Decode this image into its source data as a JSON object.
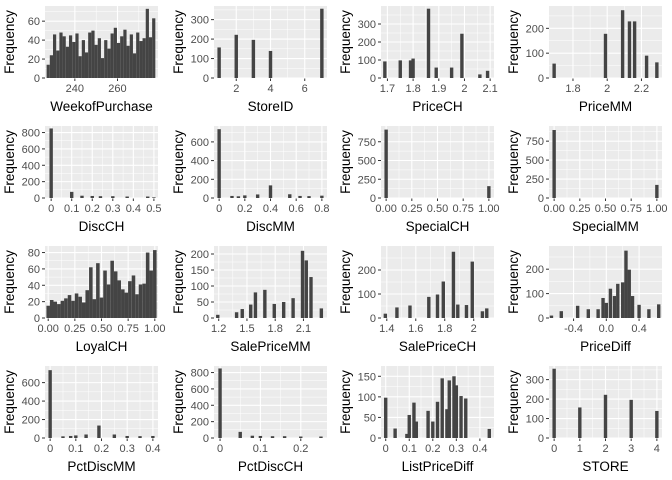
{
  "chart_data": [
    {
      "type": "bar",
      "xlabel": "WeekofPurchase",
      "ylabel": "Frequency",
      "xlim": [
        226,
        279
      ],
      "ylim": [
        0,
        76
      ],
      "xticks": [
        240,
        260,
        280
      ],
      "yticks": [
        0,
        20,
        40,
        60
      ],
      "bars": [
        {
          "x": 227.5,
          "y": 14
        },
        {
          "x": 229,
          "y": 24
        },
        {
          "x": 230.5,
          "y": 46
        },
        {
          "x": 232,
          "y": 29
        },
        {
          "x": 233.5,
          "y": 48
        },
        {
          "x": 235,
          "y": 44
        },
        {
          "x": 236.5,
          "y": 33
        },
        {
          "x": 238,
          "y": 45
        },
        {
          "x": 239.5,
          "y": 38
        },
        {
          "x": 241,
          "y": 47
        },
        {
          "x": 242.5,
          "y": 23
        },
        {
          "x": 244,
          "y": 40
        },
        {
          "x": 245.5,
          "y": 27
        },
        {
          "x": 247,
          "y": 48
        },
        {
          "x": 248.5,
          "y": 50
        },
        {
          "x": 250,
          "y": 35
        },
        {
          "x": 251.5,
          "y": 42
        },
        {
          "x": 253,
          "y": 21
        },
        {
          "x": 254.5,
          "y": 40
        },
        {
          "x": 256,
          "y": 31
        },
        {
          "x": 257.5,
          "y": 47
        },
        {
          "x": 259,
          "y": 53
        },
        {
          "x": 260.5,
          "y": 37
        },
        {
          "x": 262,
          "y": 44
        },
        {
          "x": 263.5,
          "y": 51
        },
        {
          "x": 265,
          "y": 34
        },
        {
          "x": 266.5,
          "y": 46
        },
        {
          "x": 268,
          "y": 26
        },
        {
          "x": 269.5,
          "y": 48
        },
        {
          "x": 271,
          "y": 39
        },
        {
          "x": 272.5,
          "y": 42
        },
        {
          "x": 274,
          "y": 73
        },
        {
          "x": 275.5,
          "y": 43
        },
        {
          "x": 277,
          "y": 63
        }
      ],
      "bar_width": 1.5
    },
    {
      "type": "bar",
      "xlabel": "StoreID",
      "ylabel": "Frequency",
      "xlim": [
        0.7,
        7.3
      ],
      "ylim": [
        0,
        370
      ],
      "xticks": [
        2,
        4,
        6
      ],
      "yticks": [
        0,
        100,
        200,
        300
      ],
      "bars": [
        {
          "x": 1,
          "y": 157
        },
        {
          "x": 2,
          "y": 222
        },
        {
          "x": 3,
          "y": 196
        },
        {
          "x": 4,
          "y": 139
        },
        {
          "x": 7,
          "y": 356
        }
      ],
      "bar_width": 0.2
    },
    {
      "type": "bar",
      "xlabel": "PriceCH",
      "ylabel": "Frequency",
      "xlim": [
        1.675,
        2.115
      ],
      "ylim": [
        0,
        400
      ],
      "xticks": [
        1.7,
        1.8,
        1.9,
        2.0,
        2.1
      ],
      "ytick_labels": [
        "0",
        "100",
        "200",
        "300"
      ],
      "yticks": [
        0,
        100,
        200,
        300
      ],
      "bars": [
        {
          "x": 1.69,
          "y": 92
        },
        {
          "x": 1.75,
          "y": 98
        },
        {
          "x": 1.79,
          "y": 98
        },
        {
          "x": 1.8,
          "y": 108
        },
        {
          "x": 1.86,
          "y": 385
        },
        {
          "x": 1.89,
          "y": 58
        },
        {
          "x": 1.95,
          "y": 58
        },
        {
          "x": 1.99,
          "y": 246
        },
        {
          "x": 2.06,
          "y": 20
        },
        {
          "x": 2.09,
          "y": 40
        }
      ],
      "bar_width": 0.0132
    },
    {
      "type": "bar",
      "xlabel": "PriceMM",
      "ylabel": "Frequency",
      "xlim": [
        1.66,
        2.32
      ],
      "ylim": [
        0,
        290
      ],
      "xticks": [
        1.8,
        2.0,
        2.2
      ],
      "yticks": [
        0,
        100,
        200
      ],
      "bars": [
        {
          "x": 1.69,
          "y": 58
        },
        {
          "x": 1.99,
          "y": 178
        },
        {
          "x": 2.09,
          "y": 273
        },
        {
          "x": 2.13,
          "y": 228
        },
        {
          "x": 2.16,
          "y": 228
        },
        {
          "x": 2.23,
          "y": 90
        },
        {
          "x": 2.29,
          "y": 63
        }
      ],
      "bar_width": 0.0198
    },
    {
      "type": "bar",
      "xlabel": "DiscCH",
      "ylabel": "Frequency",
      "xlim": [
        -0.03,
        0.52
      ],
      "ylim": [
        0,
        880
      ],
      "xticks": [
        0.0,
        0.1,
        0.2,
        0.3,
        0.4,
        0.5
      ],
      "yticks": [
        0,
        200,
        400,
        600,
        800
      ],
      "bars": [
        {
          "x": 0.0,
          "y": 850
        },
        {
          "x": 0.1,
          "y": 75
        },
        {
          "x": 0.15,
          "y": 28
        },
        {
          "x": 0.2,
          "y": 25
        },
        {
          "x": 0.24,
          "y": 22
        },
        {
          "x": 0.3,
          "y": 22
        },
        {
          "x": 0.37,
          "y": 18
        },
        {
          "x": 0.47,
          "y": 18
        },
        {
          "x": 0.5,
          "y": 8
        }
      ],
      "bar_width": 0.0165
    },
    {
      "type": "bar",
      "xlabel": "DiscMM",
      "ylabel": "Frequency",
      "xlim": [
        -0.04,
        0.84
      ],
      "ylim": [
        0,
        770
      ],
      "xticks": [
        0.0,
        0.2,
        0.4,
        0.6,
        0.8
      ],
      "yticks": [
        0,
        200,
        400,
        600
      ],
      "bars": [
        {
          "x": 0.0,
          "y": 736
        },
        {
          "x": 0.1,
          "y": 22
        },
        {
          "x": 0.15,
          "y": 18
        },
        {
          "x": 0.2,
          "y": 28
        },
        {
          "x": 0.3,
          "y": 38
        },
        {
          "x": 0.4,
          "y": 135
        },
        {
          "x": 0.55,
          "y": 40
        },
        {
          "x": 0.63,
          "y": 22
        },
        {
          "x": 0.7,
          "y": 20
        },
        {
          "x": 0.8,
          "y": 25
        }
      ],
      "bar_width": 0.0264
    },
    {
      "type": "bar",
      "xlabel": "SpecialCH",
      "ylabel": "Frequency",
      "xlim": [
        -0.05,
        1.05
      ],
      "ylim": [
        0,
        960
      ],
      "xticks": [
        0.0,
        0.25,
        0.5,
        0.75,
        1.0
      ],
      "xtick_labels": [
        "0.00",
        "0.25",
        "0.50",
        "0.75",
        "1.00"
      ],
      "yticks": [
        0,
        250,
        500,
        750
      ],
      "bars": [
        {
          "x": 0.0,
          "y": 912
        },
        {
          "x": 1.0,
          "y": 158
        }
      ],
      "bar_width": 0.033
    },
    {
      "type": "bar",
      "xlabel": "SpecialMM",
      "ylabel": "Frequency",
      "xlim": [
        -0.05,
        1.05
      ],
      "ylim": [
        0,
        950
      ],
      "xticks": [
        0.0,
        0.25,
        0.5,
        0.75,
        1.0
      ],
      "xtick_labels": [
        "0.00",
        "0.25",
        "0.50",
        "0.75",
        "1.00"
      ],
      "yticks": [
        0,
        250,
        500,
        750
      ],
      "bars": [
        {
          "x": 0.0,
          "y": 897
        },
        {
          "x": 1.0,
          "y": 173
        }
      ],
      "bar_width": 0.033
    },
    {
      "type": "bar",
      "xlabel": "LoyalCH",
      "ylabel": "Frequency",
      "xlim": [
        -0.03,
        1.03
      ],
      "ylim": [
        0,
        88
      ],
      "xticks": [
        0.0,
        0.25,
        0.5,
        0.75,
        1.0
      ],
      "xtick_labels": [
        "0.00",
        "0.25",
        "0.50",
        "0.75",
        "1.00"
      ],
      "yticks": [
        0,
        20,
        40,
        60,
        80
      ],
      "bars": [
        {
          "x": 0.0,
          "y": 15
        },
        {
          "x": 0.033,
          "y": 22
        },
        {
          "x": 0.066,
          "y": 20
        },
        {
          "x": 0.1,
          "y": 17
        },
        {
          "x": 0.133,
          "y": 21
        },
        {
          "x": 0.166,
          "y": 24
        },
        {
          "x": 0.2,
          "y": 28
        },
        {
          "x": 0.233,
          "y": 21
        },
        {
          "x": 0.266,
          "y": 30
        },
        {
          "x": 0.3,
          "y": 26
        },
        {
          "x": 0.333,
          "y": 19
        },
        {
          "x": 0.366,
          "y": 34
        },
        {
          "x": 0.4,
          "y": 62
        },
        {
          "x": 0.433,
          "y": 23
        },
        {
          "x": 0.466,
          "y": 67
        },
        {
          "x": 0.5,
          "y": 25
        },
        {
          "x": 0.533,
          "y": 58
        },
        {
          "x": 0.566,
          "y": 41
        },
        {
          "x": 0.6,
          "y": 70
        },
        {
          "x": 0.633,
          "y": 57
        },
        {
          "x": 0.666,
          "y": 46
        },
        {
          "x": 0.7,
          "y": 35
        },
        {
          "x": 0.733,
          "y": 31
        },
        {
          "x": 0.766,
          "y": 45
        },
        {
          "x": 0.8,
          "y": 52
        },
        {
          "x": 0.833,
          "y": 29
        },
        {
          "x": 0.866,
          "y": 41
        },
        {
          "x": 0.9,
          "y": 42
        },
        {
          "x": 0.933,
          "y": 80
        },
        {
          "x": 0.966,
          "y": 58
        },
        {
          "x": 1.0,
          "y": 83
        }
      ],
      "bar_width": 0.0333
    },
    {
      "type": "bar",
      "xlabel": "SalePriceMM",
      "ylabel": "Frequency",
      "xlim": [
        1.15,
        2.35
      ],
      "ylim": [
        0,
        225
      ],
      "xticks": [
        1.2,
        1.5,
        1.8,
        2.1
      ],
      "yticks": [
        0,
        50,
        100,
        150,
        200
      ],
      "bars": [
        {
          "x": 1.19,
          "y": 10
        },
        {
          "x": 1.39,
          "y": 18
        },
        {
          "x": 1.45,
          "y": 28
        },
        {
          "x": 1.54,
          "y": 42
        },
        {
          "x": 1.59,
          "y": 80
        },
        {
          "x": 1.69,
          "y": 88
        },
        {
          "x": 1.79,
          "y": 44
        },
        {
          "x": 1.89,
          "y": 50
        },
        {
          "x": 1.99,
          "y": 62
        },
        {
          "x": 2.09,
          "y": 210
        },
        {
          "x": 2.13,
          "y": 180
        },
        {
          "x": 2.18,
          "y": 128
        },
        {
          "x": 2.29,
          "y": 30
        }
      ],
      "bar_width": 0.036
    },
    {
      "type": "bar",
      "xlabel": "SalePriceCH",
      "ylabel": "Frequency",
      "xlim": [
        1.36,
        2.14
      ],
      "ylim": [
        0,
        300
      ],
      "xticks": [
        1.4,
        1.6,
        1.8,
        2.0
      ],
      "yticks": [
        0,
        100,
        200
      ],
      "bars": [
        {
          "x": 1.39,
          "y": 18
        },
        {
          "x": 1.47,
          "y": 44
        },
        {
          "x": 1.56,
          "y": 52
        },
        {
          "x": 1.69,
          "y": 88
        },
        {
          "x": 1.75,
          "y": 98
        },
        {
          "x": 1.79,
          "y": 152
        },
        {
          "x": 1.86,
          "y": 276
        },
        {
          "x": 1.89,
          "y": 56
        },
        {
          "x": 1.95,
          "y": 54
        },
        {
          "x": 1.99,
          "y": 235
        },
        {
          "x": 2.06,
          "y": 28
        },
        {
          "x": 2.09,
          "y": 40
        }
      ],
      "bar_width": 0.0234
    },
    {
      "type": "bar",
      "xlabel": "PriceDiff",
      "ylabel": "Frequency",
      "xlim": [
        -0.7,
        0.68
      ],
      "ylim": [
        0,
        295
      ],
      "xticks": [
        -0.4,
        0.0,
        0.4
      ],
      "xtick_labels": [
        "-0.4",
        "0.0",
        "0.4"
      ],
      "yticks": [
        0,
        100,
        200
      ],
      "bars": [
        {
          "x": -0.67,
          "y": 10
        },
        {
          "x": -0.55,
          "y": 28
        },
        {
          "x": -0.35,
          "y": 50
        },
        {
          "x": -0.22,
          "y": 36
        },
        {
          "x": -0.1,
          "y": 36
        },
        {
          "x": -0.04,
          "y": 82
        },
        {
          "x": 0.0,
          "y": 62
        },
        {
          "x": 0.05,
          "y": 120
        },
        {
          "x": 0.1,
          "y": 90
        },
        {
          "x": 0.14,
          "y": 140
        },
        {
          "x": 0.2,
          "y": 146
        },
        {
          "x": 0.24,
          "y": 276
        },
        {
          "x": 0.28,
          "y": 198
        },
        {
          "x": 0.32,
          "y": 90
        },
        {
          "x": 0.4,
          "y": 54
        },
        {
          "x": 0.52,
          "y": 36
        },
        {
          "x": 0.64,
          "y": 56
        }
      ],
      "bar_width": 0.0414
    },
    {
      "type": "bar",
      "xlabel": "PctDiscMM",
      "ylabel": "Frequency",
      "xlim": [
        -0.02,
        0.42
      ],
      "ylim": [
        0,
        780
      ],
      "xticks": [
        0.0,
        0.1,
        0.2,
        0.3,
        0.4
      ],
      "yticks": [
        0,
        200,
        400,
        600
      ],
      "bars": [
        {
          "x": 0.0,
          "y": 735
        },
        {
          "x": 0.05,
          "y": 18
        },
        {
          "x": 0.08,
          "y": 22
        },
        {
          "x": 0.1,
          "y": 28
        },
        {
          "x": 0.14,
          "y": 38
        },
        {
          "x": 0.19,
          "y": 135
        },
        {
          "x": 0.25,
          "y": 38
        },
        {
          "x": 0.3,
          "y": 22
        },
        {
          "x": 0.35,
          "y": 20
        },
        {
          "x": 0.4,
          "y": 22
        }
      ],
      "bar_width": 0.0132
    },
    {
      "type": "bar",
      "xlabel": "PctDiscCH",
      "ylabel": "Frequency",
      "xlim": [
        -0.015,
        0.265
      ],
      "ylim": [
        0,
        880
      ],
      "xticks": [
        0.0,
        0.1,
        0.2
      ],
      "yticks": [
        0,
        200,
        400,
        600,
        800
      ],
      "bars": [
        {
          "x": 0.0,
          "y": 850
        },
        {
          "x": 0.05,
          "y": 75
        },
        {
          "x": 0.08,
          "y": 28
        },
        {
          "x": 0.1,
          "y": 25
        },
        {
          "x": 0.13,
          "y": 22
        },
        {
          "x": 0.16,
          "y": 22
        },
        {
          "x": 0.2,
          "y": 18
        },
        {
          "x": 0.25,
          "y": 18
        }
      ],
      "bar_width": 0.0084
    },
    {
      "type": "bar",
      "xlabel": "ListPriceDiff",
      "ylabel": "Frequency",
      "xlim": [
        -0.02,
        0.46
      ],
      "ylim": [
        0,
        175
      ],
      "xticks": [
        0.0,
        0.1,
        0.2,
        0.3,
        0.4
      ],
      "yticks": [
        0,
        50,
        100,
        150
      ],
      "bars": [
        {
          "x": 0.0,
          "y": 98
        },
        {
          "x": 0.04,
          "y": 23
        },
        {
          "x": 0.09,
          "y": 10
        },
        {
          "x": 0.1,
          "y": 56
        },
        {
          "x": 0.12,
          "y": 86
        },
        {
          "x": 0.13,
          "y": 40
        },
        {
          "x": 0.18,
          "y": 66
        },
        {
          "x": 0.2,
          "y": 40
        },
        {
          "x": 0.22,
          "y": 88
        },
        {
          "x": 0.24,
          "y": 145
        },
        {
          "x": 0.26,
          "y": 70
        },
        {
          "x": 0.27,
          "y": 140
        },
        {
          "x": 0.29,
          "y": 150
        },
        {
          "x": 0.3,
          "y": 128
        },
        {
          "x": 0.32,
          "y": 102
        },
        {
          "x": 0.34,
          "y": 96
        },
        {
          "x": 0.44,
          "y": 22
        }
      ],
      "bar_width": 0.0144
    },
    {
      "type": "bar",
      "xlabel": "STORE",
      "ylabel": "Frequency",
      "xlim": [
        -0.2,
        4.2
      ],
      "ylim": [
        0,
        370
      ],
      "xticks": [
        0,
        1,
        2,
        3,
        4
      ],
      "yticks": [
        0,
        100,
        200,
        300
      ],
      "bars": [
        {
          "x": 0,
          "y": 356
        },
        {
          "x": 1,
          "y": 157
        },
        {
          "x": 2,
          "y": 222
        },
        {
          "x": 3,
          "y": 196
        },
        {
          "x": 4,
          "y": 139
        }
      ],
      "bar_width": 0.132
    }
  ]
}
